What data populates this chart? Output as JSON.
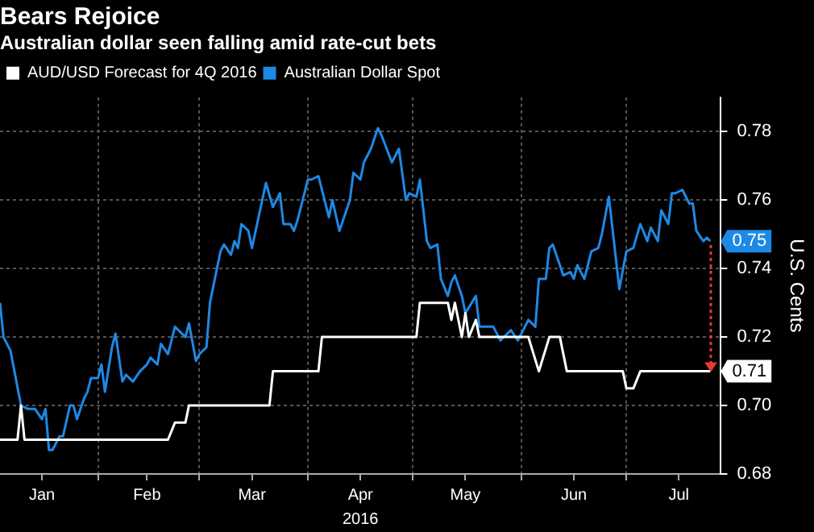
{
  "chart_data": {
    "type": "line",
    "title": "Bears Rejoice",
    "subtitle": "Australian dollar seen falling amid rate-cut bets",
    "xlabel": "2016",
    "ylabel": "U.S. Cents",
    "xlim": [
      "2016-01-04",
      "2016-07-28"
    ],
    "xticks": [
      {
        "value": "2016-01-16",
        "label": "Jan"
      },
      {
        "value": "2016-02-01",
        "label": null
      },
      {
        "value": "2016-02-15",
        "label": "Feb"
      },
      {
        "value": "2016-03-01",
        "label": null
      },
      {
        "value": "2016-03-16",
        "label": "Mar"
      },
      {
        "value": "2016-04-01",
        "label": null
      },
      {
        "value": "2016-04-16",
        "label": "Apr"
      },
      {
        "value": "2016-05-01",
        "label": null
      },
      {
        "value": "2016-05-16",
        "label": "May"
      },
      {
        "value": "2016-06-01",
        "label": null
      },
      {
        "value": "2016-06-16",
        "label": "Jun"
      },
      {
        "value": "2016-07-01",
        "label": null
      },
      {
        "value": "2016-07-16",
        "label": "Jul"
      }
    ],
    "ylim": [
      0.68,
      0.79
    ],
    "yticks": [
      {
        "value": 0.68,
        "label": "0.68"
      },
      {
        "value": 0.7,
        "label": "0.70"
      },
      {
        "value": 0.72,
        "label": "0.72"
      },
      {
        "value": 0.74,
        "label": "0.74"
      },
      {
        "value": 0.76,
        "label": "0.76"
      },
      {
        "value": 0.78,
        "label": "0.78"
      }
    ],
    "grid": true,
    "legend": "top left",
    "marker": "none",
    "line_style": "solid",
    "series": [
      {
        "name": "AUD/USD Forecast for 4Q 2016",
        "color": "#ffffff",
        "x": [
          "2016-01-04",
          "2016-01-09",
          "2016-01-10",
          "2016-01-11",
          "2016-02-21",
          "2016-02-23",
          "2016-02-26",
          "2016-02-27",
          "2016-03-21",
          "2016-03-22",
          "2016-04-04",
          "2016-04-05",
          "2016-05-02",
          "2016-05-03",
          "2016-05-11",
          "2016-05-12",
          "2016-05-13",
          "2016-05-15",
          "2016-05-16",
          "2016-05-17",
          "2016-05-19",
          "2016-05-20",
          "2016-06-03",
          "2016-06-06",
          "2016-06-09",
          "2016-06-12",
          "2016-06-14",
          "2016-06-30",
          "2016-07-01",
          "2016-07-03",
          "2016-07-05",
          "2016-07-25"
        ],
        "values": [
          0.69,
          0.69,
          0.7,
          0.69,
          0.69,
          0.695,
          0.695,
          0.7,
          0.7,
          0.71,
          0.71,
          0.72,
          0.72,
          0.73,
          0.73,
          0.725,
          0.73,
          0.72,
          0.727,
          0.72,
          0.725,
          0.72,
          0.72,
          0.71,
          0.72,
          0.72,
          0.71,
          0.71,
          0.705,
          0.705,
          0.71,
          0.71
        ]
      },
      {
        "name": "Australian Dollar Spot",
        "color": "#1e88e5",
        "x": [
          "2016-01-04",
          "2016-01-05",
          "2016-01-07",
          "2016-01-10",
          "2016-01-12",
          "2016-01-14",
          "2016-01-16",
          "2016-01-17",
          "2016-01-18",
          "2016-01-19",
          "2016-01-21",
          "2016-01-22",
          "2016-01-24",
          "2016-01-25",
          "2016-01-26",
          "2016-01-28",
          "2016-01-29",
          "2016-01-30",
          "2016-02-01",
          "2016-02-02",
          "2016-02-03",
          "2016-02-05",
          "2016-02-06",
          "2016-02-08",
          "2016-02-09",
          "2016-02-11",
          "2016-02-13",
          "2016-02-15",
          "2016-02-16",
          "2016-02-18",
          "2016-02-19",
          "2016-02-21",
          "2016-02-23",
          "2016-02-26",
          "2016-02-27",
          "2016-02-29",
          "2016-03-01",
          "2016-03-03",
          "2016-03-04",
          "2016-03-07",
          "2016-03-08",
          "2016-03-10",
          "2016-03-11",
          "2016-03-12",
          "2016-03-13",
          "2016-03-15",
          "2016-03-16",
          "2016-03-20",
          "2016-03-22",
          "2016-03-24",
          "2016-03-25",
          "2016-03-27",
          "2016-03-28",
          "2016-03-29",
          "2016-04-01",
          "2016-04-02",
          "2016-04-04",
          "2016-04-07",
          "2016-04-08",
          "2016-04-10",
          "2016-04-13",
          "2016-04-14",
          "2016-04-16",
          "2016-04-17",
          "2016-04-19",
          "2016-04-21",
          "2016-04-22",
          "2016-04-25",
          "2016-04-27",
          "2016-04-29",
          "2016-04-30",
          "2016-05-02",
          "2016-05-03",
          "2016-05-05",
          "2016-05-06",
          "2016-05-08",
          "2016-05-09",
          "2016-05-11",
          "2016-05-12",
          "2016-05-13",
          "2016-05-15",
          "2016-05-16",
          "2016-05-19",
          "2016-05-20",
          "2016-05-24",
          "2016-05-26",
          "2016-05-29",
          "2016-05-31",
          "2016-06-01",
          "2016-06-03",
          "2016-06-05",
          "2016-06-06",
          "2016-06-08",
          "2016-06-09",
          "2016-06-10",
          "2016-06-13",
          "2016-06-15",
          "2016-06-16",
          "2016-06-17",
          "2016-06-19",
          "2016-06-21",
          "2016-06-23",
          "2016-06-24",
          "2016-06-26",
          "2016-06-29",
          "2016-07-01",
          "2016-07-03",
          "2016-07-05",
          "2016-07-07",
          "2016-07-08",
          "2016-07-10",
          "2016-07-11",
          "2016-07-13",
          "2016-07-14",
          "2016-07-15",
          "2016-07-17",
          "2016-07-19",
          "2016-07-20",
          "2016-07-21",
          "2016-07-23",
          "2016-07-24",
          "2016-07-25"
        ],
        "values": [
          0.73,
          0.72,
          0.716,
          0.7,
          0.699,
          0.699,
          0.696,
          0.699,
          0.687,
          0.687,
          0.691,
          0.691,
          0.7,
          0.7,
          0.696,
          0.702,
          0.704,
          0.708,
          0.708,
          0.712,
          0.704,
          0.717,
          0.721,
          0.707,
          0.709,
          0.707,
          0.71,
          0.712,
          0.714,
          0.712,
          0.718,
          0.715,
          0.723,
          0.72,
          0.724,
          0.713,
          0.715,
          0.717,
          0.73,
          0.745,
          0.747,
          0.744,
          0.748,
          0.746,
          0.753,
          0.751,
          0.746,
          0.765,
          0.758,
          0.762,
          0.753,
          0.753,
          0.751,
          0.754,
          0.766,
          0.766,
          0.767,
          0.755,
          0.76,
          0.751,
          0.76,
          0.768,
          0.766,
          0.771,
          0.775,
          0.781,
          0.779,
          0.771,
          0.775,
          0.76,
          0.762,
          0.761,
          0.766,
          0.748,
          0.746,
          0.747,
          0.737,
          0.732,
          0.736,
          0.738,
          0.732,
          0.727,
          0.732,
          0.723,
          0.723,
          0.719,
          0.722,
          0.719,
          0.721,
          0.725,
          0.723,
          0.737,
          0.737,
          0.746,
          0.747,
          0.738,
          0.739,
          0.737,
          0.741,
          0.737,
          0.745,
          0.746,
          0.75,
          0.761,
          0.734,
          0.745,
          0.746,
          0.753,
          0.748,
          0.752,
          0.748,
          0.757,
          0.753,
          0.762,
          0.762,
          0.763,
          0.759,
          0.759,
          0.751,
          0.748,
          0.749,
          0.748
        ]
      }
    ],
    "annotations": [
      {
        "text": "0.75",
        "x": "2016-07-25",
        "y": 0.748
      },
      {
        "text": "0.71",
        "x": "2016-07-25",
        "y": 0.71
      }
    ]
  }
}
